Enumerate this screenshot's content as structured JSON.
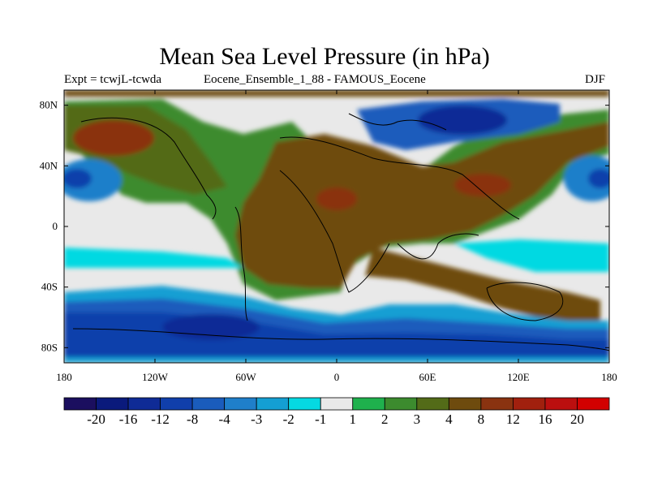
{
  "title": "Mean Sea Level Pressure (in hPa)",
  "subtitle_left": "Expt = tcwjL-tcwda",
  "subtitle_center": "Eocene_Ensemble_1_88 - FAMOUS_Eocene",
  "subtitle_right": "DJF",
  "lat_ticks": [
    "80N",
    "40N",
    "0",
    "40S",
    "80S"
  ],
  "lon_ticks": [
    "180",
    "120W",
    "60W",
    "0",
    "60E",
    "120E",
    "180"
  ],
  "colorbar": {
    "colors": [
      "#1b0f5f",
      "#0a1a7c",
      "#0f2b96",
      "#103fab",
      "#1a5cbc",
      "#1f7fca",
      "#149fd3",
      "#05d9e2",
      "#e9e9e9",
      "#1fb14d",
      "#3c8b2e",
      "#536b18",
      "#6e4b0e",
      "#8a3310",
      "#a1200e",
      "#bb0f0f",
      "#d20000"
    ],
    "labels": [
      "-20",
      "-16",
      "-12",
      "-8",
      "-4",
      "-3",
      "-2",
      "-1",
      "1",
      "2",
      "3",
      "4",
      "8",
      "12",
      "16",
      "20"
    ]
  }
}
